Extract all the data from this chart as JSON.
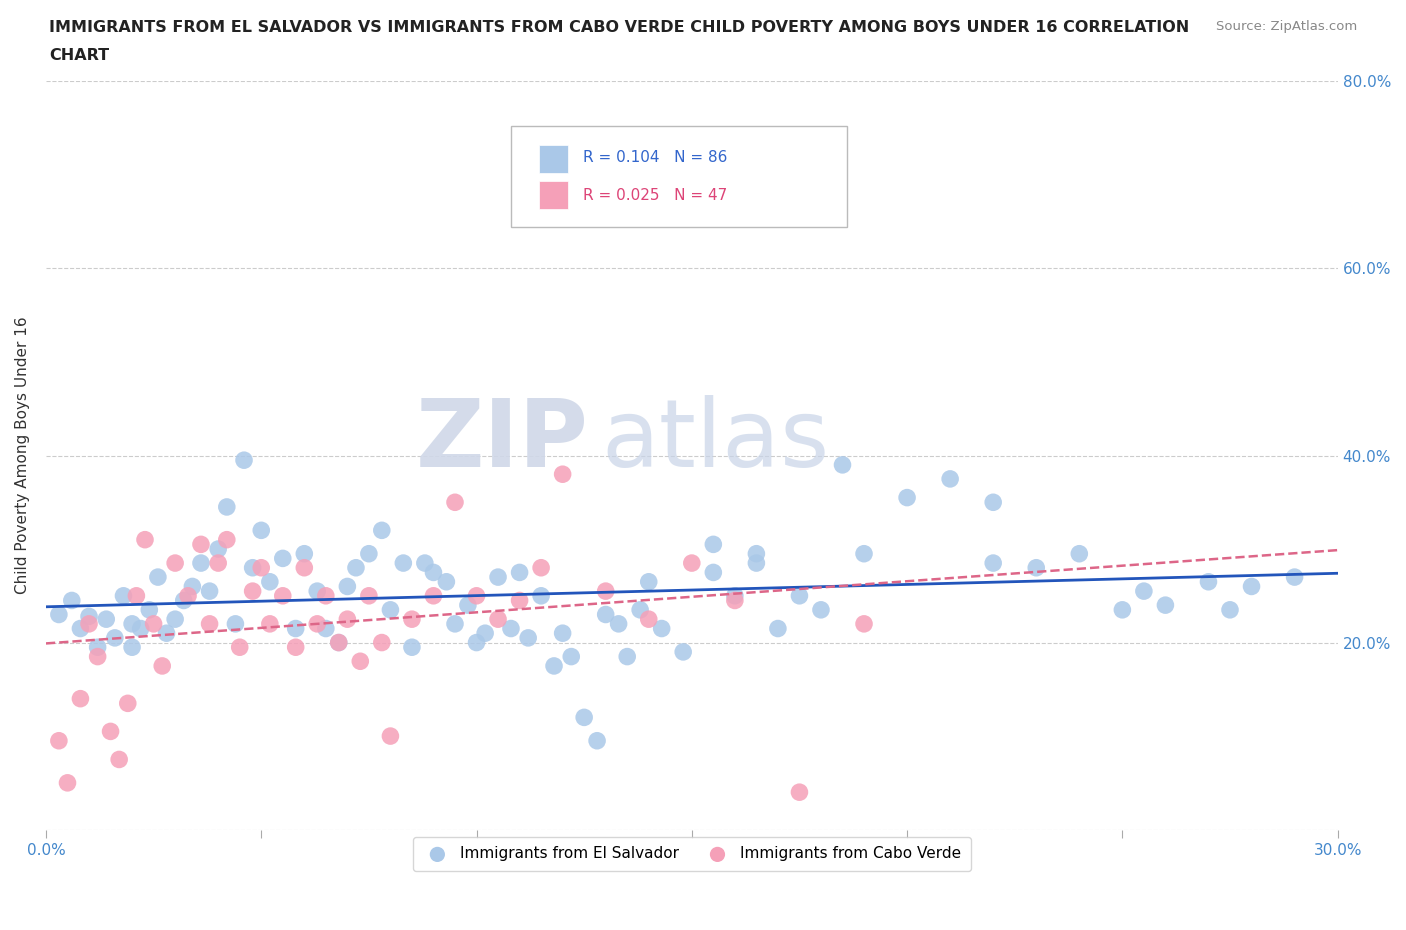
{
  "title_line1": "IMMIGRANTS FROM EL SALVADOR VS IMMIGRANTS FROM CABO VERDE CHILD POVERTY AMONG BOYS UNDER 16 CORRELATION",
  "title_line2": "CHART",
  "source": "Source: ZipAtlas.com",
  "ylabel": "Child Poverty Among Boys Under 16",
  "xlim": [
    0.0,
    0.3
  ],
  "ylim": [
    0.0,
    0.8
  ],
  "xticks": [
    0.0,
    0.05,
    0.1,
    0.15,
    0.2,
    0.25,
    0.3
  ],
  "yticks": [
    0.0,
    0.2,
    0.4,
    0.6,
    0.8
  ],
  "xtick_labels": [
    "0.0%",
    "",
    "",
    "",
    "",
    "",
    "30.0%"
  ],
  "ytick_labels_right": [
    "",
    "20.0%",
    "40.0%",
    "60.0%",
    "80.0%"
  ],
  "R_el_salvador": 0.104,
  "N_el_salvador": 86,
  "R_cabo_verde": 0.025,
  "N_cabo_verde": 47,
  "color_el_salvador": "#aac8e8",
  "color_cabo_verde": "#f5a0b8",
  "line_color_el_salvador": "#2255bb",
  "line_color_cabo_verde": "#dd6688",
  "legend_label_1": "Immigrants from El Salvador",
  "legend_label_2": "Immigrants from Cabo Verde",
  "watermark_zip": "ZIP",
  "watermark_atlas": "atlas",
  "background_color": "#ffffff",
  "grid_color": "#cccccc",
  "el_salvador_x": [
    0.003,
    0.006,
    0.008,
    0.01,
    0.012,
    0.014,
    0.016,
    0.018,
    0.02,
    0.02,
    0.022,
    0.024,
    0.026,
    0.028,
    0.03,
    0.032,
    0.034,
    0.036,
    0.038,
    0.04,
    0.042,
    0.044,
    0.046,
    0.048,
    0.05,
    0.052,
    0.055,
    0.058,
    0.06,
    0.063,
    0.065,
    0.068,
    0.07,
    0.072,
    0.075,
    0.078,
    0.08,
    0.083,
    0.085,
    0.088,
    0.09,
    0.093,
    0.095,
    0.098,
    0.1,
    0.102,
    0.105,
    0.108,
    0.11,
    0.112,
    0.115,
    0.118,
    0.12,
    0.122,
    0.125,
    0.128,
    0.13,
    0.133,
    0.135,
    0.138,
    0.14,
    0.143,
    0.148,
    0.155,
    0.16,
    0.165,
    0.17,
    0.175,
    0.18,
    0.185,
    0.19,
    0.2,
    0.21,
    0.22,
    0.23,
    0.24,
    0.25,
    0.255,
    0.26,
    0.27,
    0.275,
    0.28,
    0.155,
    0.165,
    0.22,
    0.29
  ],
  "el_salvador_y": [
    0.23,
    0.245,
    0.215,
    0.228,
    0.195,
    0.225,
    0.205,
    0.25,
    0.22,
    0.195,
    0.215,
    0.235,
    0.27,
    0.21,
    0.225,
    0.245,
    0.26,
    0.285,
    0.255,
    0.3,
    0.345,
    0.22,
    0.395,
    0.28,
    0.32,
    0.265,
    0.29,
    0.215,
    0.295,
    0.255,
    0.215,
    0.2,
    0.26,
    0.28,
    0.295,
    0.32,
    0.235,
    0.285,
    0.195,
    0.285,
    0.275,
    0.265,
    0.22,
    0.24,
    0.2,
    0.21,
    0.27,
    0.215,
    0.275,
    0.205,
    0.25,
    0.175,
    0.21,
    0.185,
    0.12,
    0.095,
    0.23,
    0.22,
    0.185,
    0.235,
    0.265,
    0.215,
    0.19,
    0.275,
    0.25,
    0.295,
    0.215,
    0.25,
    0.235,
    0.39,
    0.295,
    0.355,
    0.375,
    0.35,
    0.28,
    0.295,
    0.235,
    0.255,
    0.24,
    0.265,
    0.235,
    0.26,
    0.305,
    0.285,
    0.285,
    0.27
  ],
  "cabo_verde_x": [
    0.003,
    0.005,
    0.008,
    0.01,
    0.012,
    0.015,
    0.017,
    0.019,
    0.021,
    0.023,
    0.025,
    0.027,
    0.03,
    0.033,
    0.036,
    0.038,
    0.04,
    0.042,
    0.045,
    0.048,
    0.05,
    0.052,
    0.055,
    0.058,
    0.06,
    0.063,
    0.065,
    0.068,
    0.07,
    0.073,
    0.075,
    0.078,
    0.08,
    0.085,
    0.09,
    0.095,
    0.1,
    0.105,
    0.11,
    0.115,
    0.12,
    0.13,
    0.14,
    0.15,
    0.16,
    0.175,
    0.19
  ],
  "cabo_verde_y": [
    0.095,
    0.05,
    0.14,
    0.22,
    0.185,
    0.105,
    0.075,
    0.135,
    0.25,
    0.31,
    0.22,
    0.175,
    0.285,
    0.25,
    0.305,
    0.22,
    0.285,
    0.31,
    0.195,
    0.255,
    0.28,
    0.22,
    0.25,
    0.195,
    0.28,
    0.22,
    0.25,
    0.2,
    0.225,
    0.18,
    0.25,
    0.2,
    0.1,
    0.225,
    0.25,
    0.35,
    0.25,
    0.225,
    0.245,
    0.28,
    0.38,
    0.255,
    0.225,
    0.285,
    0.245,
    0.04,
    0.22
  ]
}
